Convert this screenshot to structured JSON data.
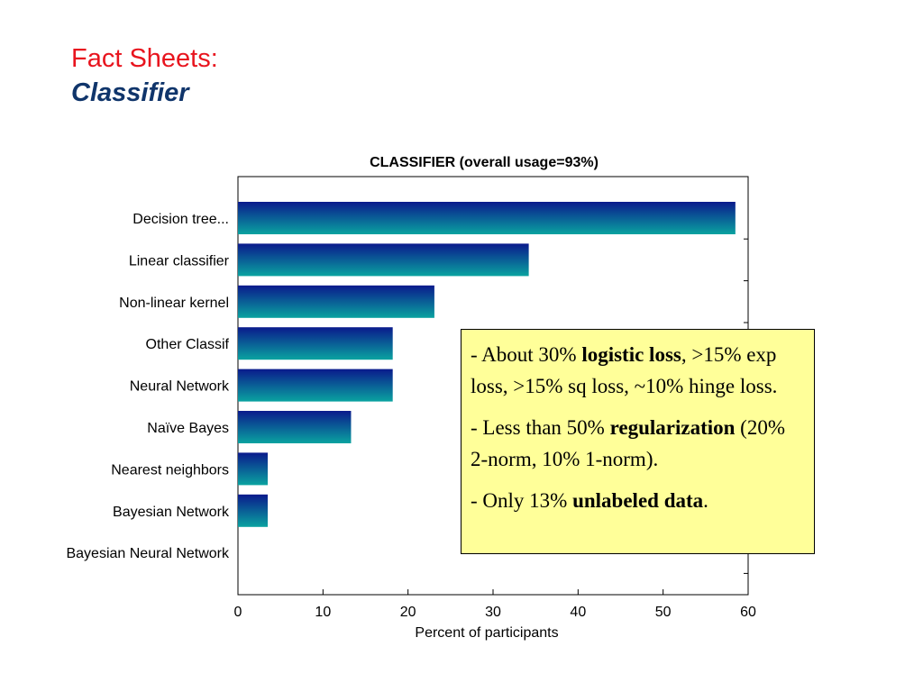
{
  "slide": {
    "title_line1": "Fact Sheets:",
    "title_line2": "Classifier"
  },
  "callout": {
    "p1_pre": "- About 30% ",
    "p1_bold": "logistic loss",
    "p1_post": ", >15% exp loss, >15% sq loss, ~10% hinge loss.",
    "p2_pre": "- Less than 50% ",
    "p2_bold": "regularization",
    "p2_post": " (20% 2-norm, 10% 1-norm).",
    "p3_pre": "- Only 13% ",
    "p3_bold": "unlabeled data",
    "p3_post": "."
  },
  "colors": {
    "title_red": "#e8141e",
    "title_navy": "#10356b",
    "bar_top": "#0a1a8c",
    "bar_bottom": "#0aa3a0",
    "callout_bg": "#ffff99"
  },
  "chart_data": {
    "type": "bar",
    "orientation": "horizontal",
    "title": "CLASSIFIER (overall usage=93%)",
    "xlabel": "Percent of participants",
    "ylabel": "",
    "categories": [
      "Decision tree...",
      "Linear classifier",
      "Non-linear kernel",
      "Other Classif",
      "Neural Network",
      "Naïve Bayes",
      "Nearest neighbors",
      "Bayesian Network",
      "Bayesian Neural Network"
    ],
    "values": [
      58.5,
      34.2,
      23.1,
      18.2,
      18.2,
      13.3,
      3.5,
      3.5,
      0
    ],
    "xlim": [
      0,
      60
    ],
    "xticks": [
      0,
      10,
      20,
      30,
      40,
      50,
      60
    ],
    "grid": false,
    "legend": "none"
  }
}
